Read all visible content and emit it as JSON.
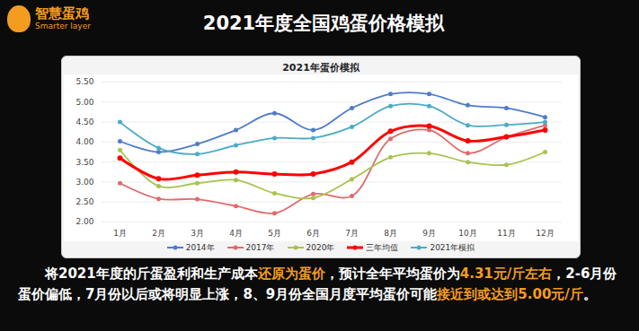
{
  "page": {
    "title": "2021年度全国鸡蛋价格模拟",
    "logo": [
      "智慧蛋鸡",
      "Smarter layer"
    ],
    "caption": [
      "将2021年度的斤蛋盈利和生产成本",
      "还原为蛋价",
      "，预计全年平均蛋价为",
      "4.31元/斤左右",
      "，2-6月份蛋价偏低，7月份以后或将明显上涨，8、9月份全国月度平均蛋价可能",
      "接近到或达到5.00元/斤",
      "。"
    ]
  },
  "chart_data": {
    "type": "line",
    "title": "2021年蛋价模拟",
    "categories": [
      "1月",
      "2月",
      "3月",
      "4月",
      "5月",
      "6月",
      "7月",
      "8月",
      "9月",
      "10月",
      "11月",
      "12月"
    ],
    "ylim": [
      2,
      5.5
    ],
    "yticks": [
      {
        "value": 2,
        "label": "2.00"
      },
      {
        "value": 2.5,
        "label": "2.50"
      },
      {
        "value": 3,
        "label": "3.00"
      },
      {
        "value": 3.5,
        "label": "3.50"
      },
      {
        "value": 4,
        "label": "4.00"
      },
      {
        "value": 4.5,
        "label": "4.50"
      },
      {
        "value": 5,
        "label": "5.00"
      },
      {
        "value": 5.5,
        "label": "5.50"
      }
    ],
    "grid": true,
    "legend": "bottom",
    "series": [
      {
        "name": "2014年",
        "color": "#4f7cc9",
        "marker": "circle",
        "line_style": "solid",
        "values": [
          4.02,
          3.75,
          3.95,
          4.3,
          4.72,
          4.3,
          4.85,
          5.2,
          5.2,
          4.92,
          4.85,
          4.62
        ]
      },
      {
        "name": "2017年",
        "color": "#e06a6c",
        "marker": "circle",
        "line_style": "solid",
        "values": [
          2.97,
          2.58,
          2.57,
          2.4,
          2.22,
          2.7,
          2.65,
          4.08,
          4.3,
          3.72,
          4.12,
          4.42
        ]
      },
      {
        "name": "2020年",
        "color": "#a9c34f",
        "marker": "circle",
        "line_style": "solid",
        "values": [
          3.8,
          2.9,
          2.97,
          3.05,
          2.72,
          2.6,
          3.07,
          3.62,
          3.72,
          3.5,
          3.43,
          3.75
        ]
      },
      {
        "name": "三年均值",
        "color": "#ff0000",
        "marker": "circle",
        "line_style": "bold",
        "values": [
          3.6,
          3.08,
          3.17,
          3.25,
          3.2,
          3.2,
          3.5,
          4.27,
          4.4,
          4.03,
          4.13,
          4.3
        ]
      },
      {
        "name": "2021年模拟",
        "color": "#4bacc6",
        "marker": "circle",
        "line_style": "solid",
        "values": [
          4.5,
          3.85,
          3.7,
          3.92,
          4.1,
          4.1,
          4.38,
          4.9,
          4.9,
          4.42,
          4.43,
          4.5
        ]
      }
    ]
  }
}
